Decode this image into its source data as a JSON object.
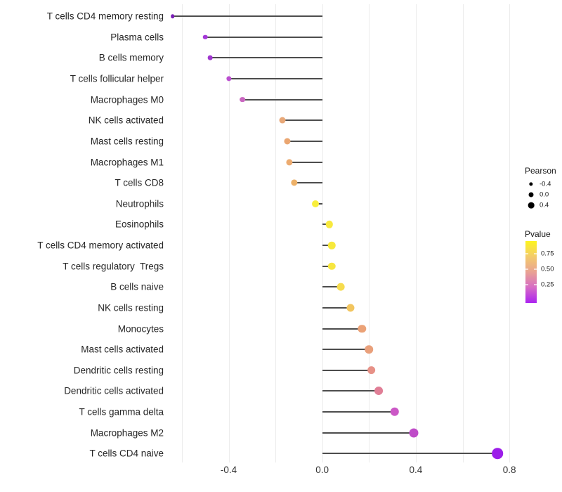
{
  "chart_data": {
    "type": "lollipop",
    "title": "",
    "xlabel": "",
    "ylabel": "",
    "xlim": [
      -0.66,
      0.85
    ],
    "grid": true,
    "gridline_values": [
      -0.6,
      -0.4,
      -0.2,
      0.0,
      0.2,
      0.4,
      0.6,
      0.8
    ],
    "x_ticks": [
      {
        "value": -0.4,
        "label": "-0.4"
      },
      {
        "value": 0.0,
        "label": "0.0"
      },
      {
        "value": 0.4,
        "label": "0.4"
      },
      {
        "value": 0.8,
        "label": "0.8"
      }
    ],
    "rows": [
      {
        "label": "T cells CD4 memory resting",
        "pearson": -0.64,
        "color": "#7a1fb5"
      },
      {
        "label": "Plasma cells",
        "pearson": -0.5,
        "color": "#a438d8"
      },
      {
        "label": "B cells memory",
        "pearson": -0.48,
        "color": "#a036cf"
      },
      {
        "label": "T cells follicular helper",
        "pearson": -0.4,
        "color": "#bb4fd0"
      },
      {
        "label": "Macrophages M0",
        "pearson": -0.34,
        "color": "#c966c0"
      },
      {
        "label": "NK cells activated",
        "pearson": -0.17,
        "color": "#e8a878"
      },
      {
        "label": "Mast cells resting",
        "pearson": -0.15,
        "color": "#eaa671"
      },
      {
        "label": "Macrophages M1",
        "pearson": -0.14,
        "color": "#ecab70"
      },
      {
        "label": "T cells CD8",
        "pearson": -0.12,
        "color": "#edb169"
      },
      {
        "label": "Neutrophils",
        "pearson": -0.03,
        "color": "#f8ee3c"
      },
      {
        "label": "Eosinophils",
        "pearson": 0.03,
        "color": "#f8e93e"
      },
      {
        "label": "T cells CD4 memory activated",
        "pearson": 0.04,
        "color": "#f7e93c"
      },
      {
        "label": "T cells regulatory  Tregs",
        "pearson": 0.04,
        "color": "#f7e640"
      },
      {
        "label": "B cells naive",
        "pearson": 0.08,
        "color": "#f6dc4e"
      },
      {
        "label": "NK cells resting",
        "pearson": 0.12,
        "color": "#f2c55f"
      },
      {
        "label": "Monocytes",
        "pearson": 0.17,
        "color": "#eba277"
      },
      {
        "label": "Mast cells activated",
        "pearson": 0.2,
        "color": "#e9a07b"
      },
      {
        "label": "Dendritic cells resting",
        "pearson": 0.21,
        "color": "#e79187"
      },
      {
        "label": "Dendritic cells activated",
        "pearson": 0.24,
        "color": "#e07e96"
      },
      {
        "label": "T cells gamma delta",
        "pearson": 0.31,
        "color": "#cb58c6"
      },
      {
        "label": "Macrophages M2",
        "pearson": 0.39,
        "color": "#bf4cc8"
      },
      {
        "label": "T cells CD4 naive",
        "pearson": 0.75,
        "color": "#9c1ee9"
      }
    ],
    "legend": {
      "size_title": "Pearson",
      "size_items": [
        {
          "label": "-0.4",
          "diameter": 5.3
        },
        {
          "label": "0.0",
          "diameter": 7.0
        },
        {
          "label": "0.4",
          "diameter": 8.7
        }
      ],
      "color_title": "Pvalue",
      "color_tick_labels": [
        "0.75",
        "0.50",
        "0.25"
      ],
      "gradient_stops": [
        "#fdf51f",
        "#f3cb6b",
        "#e9a293",
        "#d66bc5",
        "#ab23f0"
      ],
      "legend_position": "right"
    },
    "style": {
      "stem_color": "#4d4d4d",
      "grid_color": "#ececec",
      "text_color": "#262626"
    }
  }
}
